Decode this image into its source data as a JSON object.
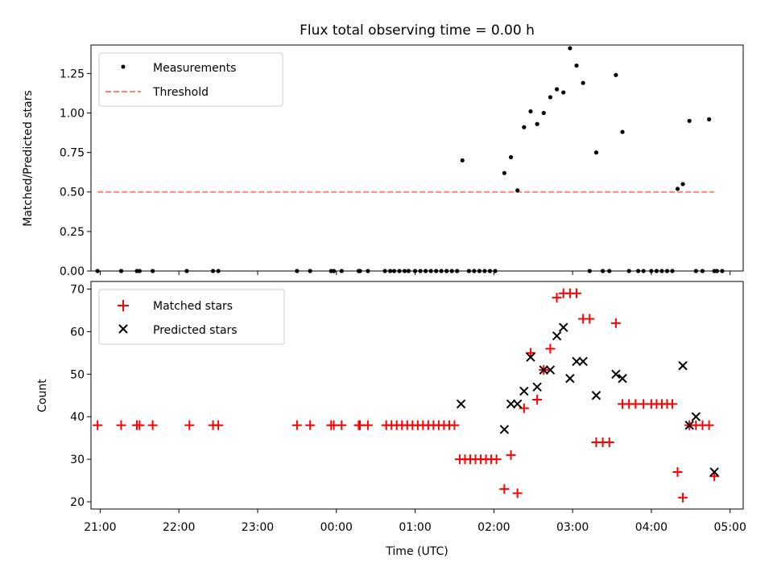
{
  "title": "Flux total observing time = 0.00 h",
  "xlabel": "Time (UTC)",
  "colors": {
    "measurement": "#000000",
    "threshold": "#ff7f7f",
    "matched": "#ff0000",
    "predicted": "#000000"
  },
  "chart_data": [
    {
      "type": "scatter",
      "ylabel": "Matched/Predicted stars",
      "xlim": [
        "20:53",
        "05:10"
      ],
      "ylim": [
        0,
        1.43
      ],
      "yticks": [
        0.0,
        0.25,
        0.5,
        0.75,
        1.0,
        1.25
      ],
      "ytick_labels": [
        "0.00",
        "0.25",
        "0.50",
        "0.75",
        "1.00",
        "1.25"
      ],
      "grid": false,
      "legend_position": "upper-left",
      "series": [
        {
          "name": "Measurements",
          "marker": "dot",
          "x": [
            "20:58",
            "21:16",
            "21:28",
            "21:30",
            "21:40",
            "22:06",
            "22:26",
            "22:30",
            "23:30",
            "23:40",
            "23:56",
            "23:58",
            "00:04",
            "00:17",
            "00:18",
            "00:24",
            "00:37",
            "00:41",
            "00:44",
            "00:48",
            "00:52",
            "00:55",
            "01:00",
            "01:04",
            "01:08",
            "01:12",
            "01:16",
            "01:20",
            "01:24",
            "01:28",
            "01:32",
            "01:36",
            "01:41",
            "01:45",
            "01:49",
            "01:53",
            "01:57",
            "02:01",
            "02:08",
            "02:13",
            "02:18",
            "02:23",
            "02:28",
            "02:33",
            "02:38",
            "02:43",
            "02:48",
            "02:53",
            "02:58",
            "03:03",
            "03:08",
            "03:13",
            "03:18",
            "03:23",
            "03:28",
            "03:33",
            "03:38",
            "03:43",
            "03:50",
            "03:54",
            "04:00",
            "04:04",
            "04:08",
            "04:12",
            "04:16",
            "04:20",
            "04:24",
            "04:29",
            "04:34",
            "04:39",
            "04:44",
            "04:48",
            "04:50",
            "04:54"
          ],
          "y": [
            0,
            0,
            0,
            0,
            0,
            0,
            0,
            0,
            0,
            0,
            0,
            0,
            0,
            0,
            0,
            0,
            0,
            0,
            0,
            0,
            0,
            0,
            0,
            0,
            0,
            0,
            0,
            0,
            0,
            0,
            0,
            0.7,
            0,
            0,
            0,
            0,
            0,
            0,
            0.62,
            0.72,
            0.51,
            0.91,
            1.01,
            0.93,
            1.0,
            1.1,
            1.15,
            1.13,
            1.41,
            1.3,
            1.19,
            0,
            0.75,
            0,
            0,
            1.24,
            0.88,
            0,
            0,
            0,
            0,
            0,
            0,
            0,
            0,
            0.52,
            0.55,
            0.95,
            0,
            0,
            0.96,
            0,
            0,
            0
          ]
        },
        {
          "name": "Threshold",
          "line_style": "dashed",
          "x": [
            "20:58",
            "04:48"
          ],
          "y": [
            0.5,
            0.5
          ]
        }
      ]
    },
    {
      "type": "scatter",
      "ylabel": "Count",
      "xlim": [
        "20:53",
        "05:10"
      ],
      "ylim": [
        18.3,
        71.8
      ],
      "yticks": [
        20,
        30,
        40,
        50,
        60,
        70
      ],
      "ytick_labels": [
        "20",
        "30",
        "40",
        "50",
        "60",
        "70"
      ],
      "xticks": [
        "21:00",
        "22:00",
        "23:00",
        "00:00",
        "01:00",
        "02:00",
        "03:00",
        "04:00",
        "05:00"
      ],
      "xtick_labels": [
        "21:00",
        "22:00",
        "23:00",
        "00:00",
        "01:00",
        "02:00",
        "03:00",
        "04:00",
        "05:00"
      ],
      "grid": false,
      "legend_position": "upper-left",
      "series": [
        {
          "name": "Matched stars",
          "marker": "plus",
          "x": [
            "20:58",
            "21:16",
            "21:28",
            "21:30",
            "21:40",
            "22:08",
            "22:26",
            "22:30",
            "23:30",
            "23:40",
            "23:56",
            "23:58",
            "00:04",
            "00:17",
            "00:18",
            "00:24",
            "00:38",
            "00:42",
            "00:46",
            "00:50",
            "00:54",
            "00:58",
            "01:02",
            "01:06",
            "01:10",
            "01:14",
            "01:18",
            "01:22",
            "01:26",
            "01:30",
            "01:34",
            "01:38",
            "01:42",
            "01:46",
            "01:50",
            "01:54",
            "01:58",
            "02:02",
            "02:08",
            "02:13",
            "02:18",
            "02:23",
            "02:28",
            "02:33",
            "02:38",
            "02:43",
            "02:48",
            "02:53",
            "02:58",
            "03:03",
            "03:08",
            "03:13",
            "03:18",
            "03:23",
            "03:28",
            "03:33",
            "03:38",
            "03:43",
            "03:48",
            "03:54",
            "04:00",
            "04:04",
            "04:08",
            "04:12",
            "04:16",
            "04:20",
            "04:24",
            "04:29",
            "04:34",
            "04:39",
            "04:44",
            "04:48"
          ],
          "y": [
            38,
            38,
            38,
            38,
            38,
            38,
            38,
            38,
            38,
            38,
            38,
            38,
            38,
            38,
            38,
            38,
            38,
            38,
            38,
            38,
            38,
            38,
            38,
            38,
            38,
            38,
            38,
            38,
            38,
            38,
            30,
            30,
            30,
            30,
            30,
            30,
            30,
            30,
            23,
            31,
            22,
            42,
            55,
            44,
            51,
            56,
            68,
            69,
            69,
            69,
            63,
            63,
            34,
            34,
            34,
            62,
            43,
            43,
            43,
            43,
            43,
            43,
            43,
            43,
            43,
            27,
            21,
            38,
            38,
            38,
            38,
            26
          ]
        },
        {
          "name": "Predicted stars",
          "marker": "x",
          "x": [
            "01:35",
            "02:08",
            "02:13",
            "02:18",
            "02:23",
            "02:28",
            "02:33",
            "02:38",
            "02:43",
            "02:48",
            "02:53",
            "02:58",
            "03:03",
            "03:08",
            "03:18",
            "03:33",
            "03:38",
            "04:24",
            "04:29",
            "04:34",
            "04:48"
          ],
          "y": [
            43,
            37,
            43,
            43,
            46,
            54,
            47,
            51,
            51,
            59,
            61,
            49,
            53,
            53,
            45,
            50,
            49,
            52,
            38,
            40,
            27
          ]
        }
      ]
    }
  ]
}
